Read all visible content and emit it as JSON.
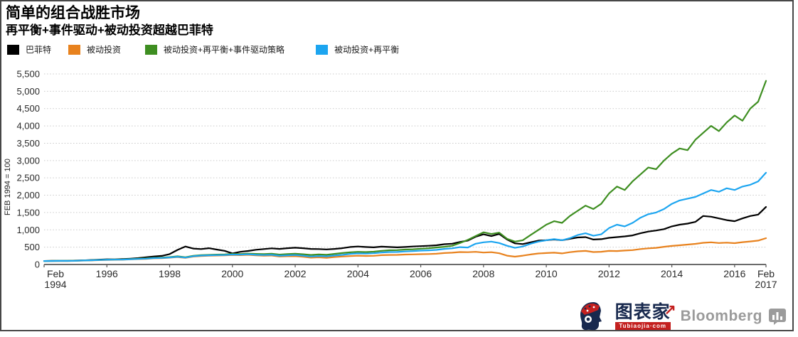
{
  "header": {
    "title": "简单的组合战胜市场",
    "subtitle": "再平衡+事件驱动+被动投资超越巴菲特"
  },
  "branding": {
    "tubiaojia_name": "图表家",
    "tubiaojia_arrow": "↗",
    "tubiaojia_domain": "Tubiaojia·com",
    "bloomberg": "Bloomberg"
  },
  "chart_data": {
    "type": "line",
    "title": "简单的组合战胜市场",
    "subtitle": "再平衡+事件驱动+被动投资超越巴菲特",
    "ylabel": "FEB 1994 = 100",
    "ylim": [
      0,
      5500
    ],
    "ystep": 500,
    "grid": "dotted horizontal gridlines, color #c9c9c9",
    "legend_position": "top-left",
    "x_unit": "quarterly points from Feb 1994 to Feb 2017",
    "x_tick_indices": [
      0,
      8,
      16,
      24,
      32,
      40,
      48,
      56,
      64,
      72,
      80,
      88,
      92
    ],
    "x_tick_labels": [
      [
        "Feb",
        "1994"
      ],
      [
        "1996"
      ],
      [
        "1998"
      ],
      [
        "2000"
      ],
      [
        "2002"
      ],
      [
        "2004"
      ],
      [
        "2006"
      ],
      [
        "2008"
      ],
      [
        "2010"
      ],
      [
        "2012"
      ],
      [
        "2014"
      ],
      [
        "2016"
      ],
      [
        "Feb",
        "2017"
      ]
    ],
    "series": [
      {
        "name": "巴菲特",
        "color": "#000000",
        "values": [
          100,
          104,
          107,
          105,
          112,
          120,
          130,
          140,
          150,
          148,
          155,
          168,
          185,
          208,
          232,
          248,
          300,
          420,
          520,
          460,
          445,
          470,
          430,
          395,
          320,
          365,
          390,
          425,
          445,
          465,
          450,
          470,
          485,
          470,
          450,
          445,
          435,
          450,
          470,
          505,
          520,
          505,
          495,
          515,
          505,
          495,
          505,
          520,
          530,
          540,
          555,
          585,
          600,
          650,
          690,
          800,
          870,
          820,
          880,
          720,
          610,
          590,
          640,
          690,
          700,
          720,
          700,
          740,
          780,
          790,
          720,
          730,
          770,
          790,
          810,
          840,
          900,
          950,
          980,
          1020,
          1100,
          1150,
          1180,
          1230,
          1400,
          1380,
          1330,
          1280,
          1250,
          1330,
          1400,
          1440,
          1660
        ]
      },
      {
        "name": "被动投资",
        "color": "#e8821e",
        "values": [
          100,
          99,
          103,
          101,
          105,
          112,
          118,
          126,
          132,
          136,
          138,
          148,
          155,
          163,
          178,
          182,
          196,
          215,
          190,
          228,
          245,
          252,
          258,
          262,
          272,
          268,
          280,
          262,
          252,
          258,
          230,
          238,
          240,
          222,
          196,
          208,
          192,
          215,
          230,
          242,
          252,
          246,
          250,
          268,
          276,
          278,
          288,
          292,
          298,
          302,
          310,
          330,
          340,
          360,
          355,
          365,
          345,
          355,
          325,
          255,
          225,
          255,
          290,
          318,
          330,
          340,
          320,
          355,
          380,
          392,
          360,
          368,
          392,
          388,
          402,
          415,
          445,
          465,
          480,
          510,
          535,
          555,
          575,
          595,
          625,
          640,
          620,
          630,
          615,
          645,
          665,
          690,
          760
        ]
      },
      {
        "name": "被动投资+再平衡+事件驱动策略",
        "color": "#3e8e21",
        "values": [
          100,
          102,
          105,
          104,
          109,
          116,
          124,
          132,
          140,
          143,
          147,
          157,
          166,
          176,
          192,
          198,
          214,
          235,
          210,
          250,
          268,
          278,
          285,
          292,
          305,
          300,
          315,
          305,
          300,
          310,
          285,
          300,
          310,
          295,
          275,
          290,
          280,
          305,
          330,
          350,
          365,
          360,
          370,
          395,
          410,
          415,
          430,
          440,
          455,
          470,
          490,
          510,
          540,
          620,
          710,
          820,
          930,
          880,
          920,
          740,
          660,
          700,
          850,
          1000,
          1150,
          1250,
          1200,
          1400,
          1550,
          1700,
          1600,
          1750,
          2050,
          2250,
          2150,
          2400,
          2600,
          2800,
          2750,
          3000,
          3200,
          3350,
          3300,
          3600,
          3800,
          4000,
          3850,
          4100,
          4300,
          4150,
          4500,
          4700,
          5300
        ]
      },
      {
        "name": "被动投资+再平衡",
        "color": "#1ca5f0",
        "values": [
          100,
          101,
          104,
          102,
          107,
          114,
          121,
          129,
          136,
          139,
          142,
          152,
          160,
          169,
          184,
          189,
          204,
          224,
          200,
          238,
          256,
          264,
          270,
          276,
          288,
          284,
          296,
          280,
          272,
          280,
          255,
          265,
          272,
          255,
          230,
          245,
          235,
          258,
          278,
          305,
          320,
          315,
          325,
          345,
          360,
          362,
          375,
          385,
          400,
          408,
          420,
          450,
          465,
          500,
          490,
          600,
          640,
          660,
          620,
          540,
          480,
          520,
          600,
          660,
          700,
          730,
          700,
          760,
          850,
          900,
          830,
          870,
          1050,
          1150,
          1100,
          1200,
          1350,
          1450,
          1500,
          1600,
          1750,
          1850,
          1900,
          1950,
          2050,
          2150,
          2100,
          2200,
          2150,
          2250,
          2300,
          2400,
          2650
        ]
      }
    ]
  }
}
